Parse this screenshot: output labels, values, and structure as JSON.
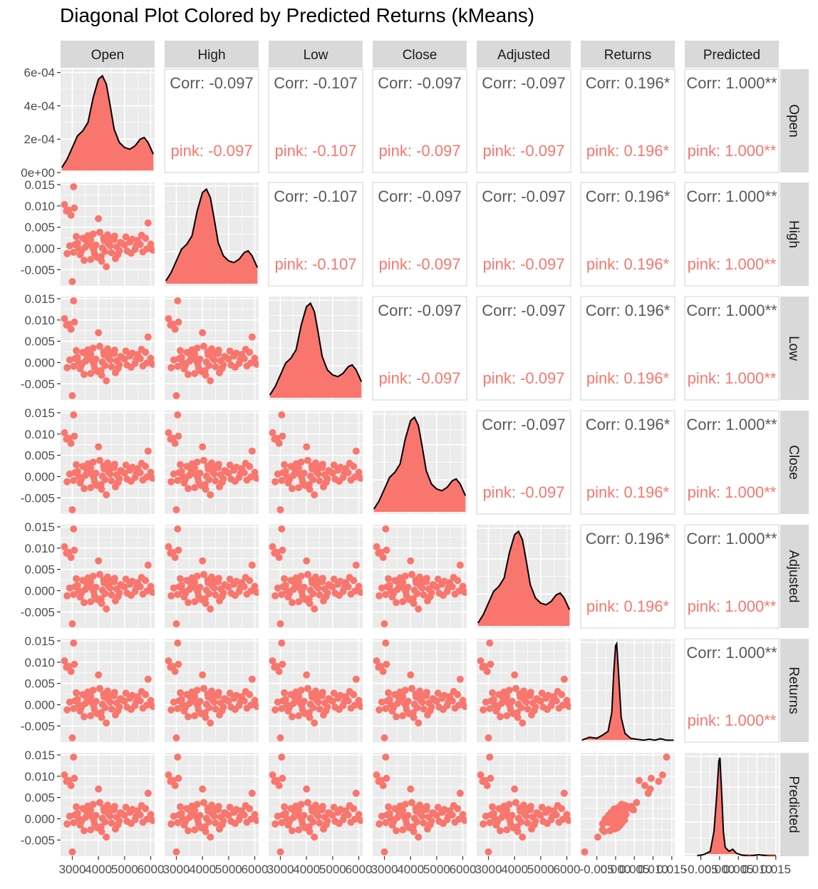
{
  "chart_data": {
    "type": "scatter",
    "title": "Diagonal Plot Colored by Predicted Returns (kMeans)",
    "variables": [
      "Open",
      "High",
      "Low",
      "Close",
      "Adjusted",
      "Returns",
      "Predicted"
    ],
    "fill_color": "#F8766D",
    "panel_background": "#EBEBEB",
    "strip_background": "#D9D9D9",
    "legend": "none",
    "grid": true,
    "corr_labels": {
      "overall": "Corr:",
      "group": "pink:"
    },
    "correlations": [
      [
        "",
        "-0.097",
        "-0.107",
        "-0.097",
        "-0.097",
        "0.196*",
        "1.000**"
      ],
      [
        "",
        "",
        "-0.107",
        "-0.097",
        "-0.097",
        "0.196*",
        "1.000**"
      ],
      [
        "",
        "",
        "",
        "-0.097",
        "-0.097",
        "0.196*",
        "1.000**"
      ],
      [
        "",
        "",
        "",
        "",
        "-0.097",
        "0.196*",
        "1.000**"
      ],
      [
        "",
        "",
        "",
        "",
        "",
        "0.196*",
        "1.000**"
      ],
      [
        "",
        "",
        "",
        "",
        "",
        "",
        "1.000**"
      ]
    ],
    "y_ticks_density": [
      "0e+00",
      "2e-04",
      "4e-04",
      "6e-04"
    ],
    "y_ticks_returns": [
      "-0.005",
      "0.000",
      "0.005",
      "0.010",
      "0.015"
    ],
    "x_ticks_price": [
      "3000",
      "4000",
      "5000",
      "6000"
    ],
    "x_ticks_returns": [
      "-0.005",
      "0.000",
      "0.005",
      "0.010",
      "0.015"
    ],
    "x_ticks_predicted": [
      "-0.005",
      "0.000",
      "0.005",
      "0.010",
      "0.015"
    ],
    "density_ylim": [
      0,
      0.00062
    ],
    "price_xlim": [
      2550,
      6150
    ],
    "returns_ylim": [
      -0.0088,
      0.0155
    ],
    "returns_xlim": [
      -0.0093,
      0.0158
    ],
    "price_density": [
      [
        2600,
        3e-05
      ],
      [
        2800,
        8e-05
      ],
      [
        3000,
        0.00015
      ],
      [
        3200,
        0.00022
      ],
      [
        3400,
        0.00025
      ],
      [
        3600,
        0.0003
      ],
      [
        3800,
        0.00045
      ],
      [
        4000,
        0.00056
      ],
      [
        4150,
        0.00058
      ],
      [
        4300,
        0.00053
      ],
      [
        4450,
        0.0004
      ],
      [
        4600,
        0.00026
      ],
      [
        4800,
        0.00018
      ],
      [
        5000,
        0.00015
      ],
      [
        5200,
        0.00014
      ],
      [
        5400,
        0.00016
      ],
      [
        5600,
        0.0002
      ],
      [
        5750,
        0.00021
      ],
      [
        5900,
        0.00018
      ],
      [
        6100,
        0.00011
      ]
    ],
    "returns_density": [
      [
        -0.009,
        0.02
      ],
      [
        -0.007,
        0.05
      ],
      [
        -0.005,
        0.04
      ],
      [
        -0.0035,
        0.07
      ],
      [
        -0.002,
        0.11
      ],
      [
        -0.001,
        0.3
      ],
      [
        -0.0005,
        0.7
      ],
      [
        0.0,
        0.98
      ],
      [
        0.0003,
        1.0
      ],
      [
        0.0008,
        0.7
      ],
      [
        0.0015,
        0.25
      ],
      [
        0.0025,
        0.09
      ],
      [
        0.004,
        0.04
      ],
      [
        0.0055,
        0.03
      ],
      [
        0.0075,
        0.02
      ],
      [
        0.009,
        0.03
      ],
      [
        0.0105,
        0.02
      ],
      [
        0.012,
        0.035
      ],
      [
        0.0135,
        0.02
      ],
      [
        0.0155,
        0.02
      ]
    ],
    "predicted_density": [
      [
        -0.006,
        0.0
      ],
      [
        -0.004,
        0.02
      ],
      [
        -0.0025,
        0.05
      ],
      [
        -0.0015,
        0.25
      ],
      [
        -0.0008,
        0.6
      ],
      [
        -0.0002,
        0.97
      ],
      [
        0.0001,
        1.0
      ],
      [
        0.0006,
        0.6
      ],
      [
        0.001,
        0.25
      ],
      [
        0.0015,
        0.09
      ],
      [
        0.0025,
        0.05
      ],
      [
        0.0035,
        0.07
      ],
      [
        0.0045,
        0.03
      ],
      [
        0.006,
        0.01
      ],
      [
        0.008,
        0.0
      ],
      [
        0.0105,
        0.015
      ],
      [
        0.013,
        0.0
      ],
      [
        0.015,
        0.0
      ]
    ],
    "points": [
      [
        2700,
        0.0103
      ],
      [
        2780,
        0.0088
      ],
      [
        2860,
        0.009
      ],
      [
        2950,
        0.0078
      ],
      [
        3050,
        0.0145
      ],
      [
        3000,
        -0.0078
      ],
      [
        3080,
        0.0095
      ],
      [
        2800,
        -0.0012
      ],
      [
        2900,
        0.0006
      ],
      [
        3050,
        -0.0009
      ],
      [
        3200,
        0.0012
      ],
      [
        3300,
        -0.0015
      ],
      [
        3400,
        0.0024
      ],
      [
        3500,
        0.0003
      ],
      [
        3600,
        0.003
      ],
      [
        3700,
        -0.0026
      ],
      [
        3800,
        0.0034
      ],
      [
        3900,
        0.0008
      ],
      [
        4000,
        0.007
      ],
      [
        4100,
        -0.0019
      ],
      [
        4200,
        0.0025
      ],
      [
        4300,
        -0.0043
      ],
      [
        4400,
        0.0016
      ],
      [
        4500,
        -0.001
      ],
      [
        4600,
        0.0021
      ],
      [
        4700,
        0.0004
      ],
      [
        4800,
        -0.0005
      ],
      [
        4900,
        0.0012
      ],
      [
        5000,
        0.0008
      ],
      [
        5100,
        -0.0006
      ],
      [
        5200,
        0.0015
      ],
      [
        5300,
        0.0022
      ],
      [
        5400,
        -0.0002
      ],
      [
        5500,
        0.0019
      ],
      [
        5600,
        0.0009
      ],
      [
        5700,
        -0.0008
      ],
      [
        5800,
        0.0024
      ],
      [
        5900,
        0.006
      ],
      [
        6000,
        0.001
      ],
      [
        6080,
        -0.0004
      ],
      [
        3150,
        0.0028
      ],
      [
        3350,
        -0.0006
      ],
      [
        3550,
        0.0017
      ],
      [
        3750,
        0.0005
      ],
      [
        3950,
        -0.0021
      ],
      [
        4150,
        0.0001
      ],
      [
        4350,
        0.0032
      ],
      [
        4550,
        0.0023
      ],
      [
        4750,
        -0.0014
      ],
      [
        3250,
        0.0
      ],
      [
        3450,
        -0.0028
      ],
      [
        3650,
        0.0011
      ],
      [
        3850,
        -0.0012
      ],
      [
        4050,
        0.0038
      ],
      [
        4250,
        -0.0007
      ],
      [
        4450,
        0.0006
      ],
      [
        4650,
        -0.0024
      ],
      [
        4850,
        0.0014
      ],
      [
        5050,
        0.0027
      ],
      [
        5250,
        -0.0011
      ],
      [
        5450,
        0.0007
      ],
      [
        5650,
        0.0031
      ],
      [
        5850,
        -0.0001
      ],
      [
        3100,
        0.0009
      ],
      [
        3700,
        0.002
      ],
      [
        4120,
        -0.003
      ],
      [
        4380,
        0.0011
      ],
      [
        4620,
        0.0029
      ],
      [
        4220,
        0.0018
      ],
      [
        3820,
        -0.0003
      ]
    ]
  }
}
